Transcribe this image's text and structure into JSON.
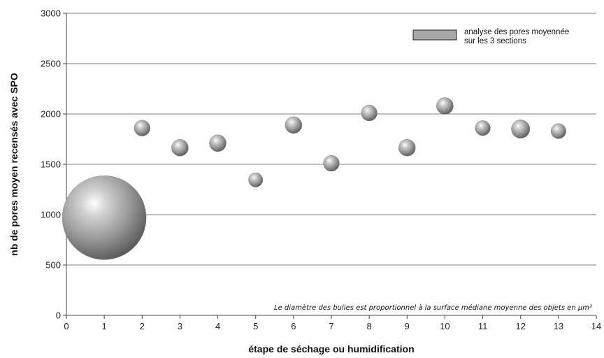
{
  "chart_data": {
    "type": "scatter",
    "subtype": "bubble",
    "xlabel": "étape de séchage ou humidification",
    "ylabel": "nb de pores moyen recensés avec SPO",
    "xlim": [
      0,
      14
    ],
    "ylim": [
      0,
      3000
    ],
    "x_ticks": [
      "0",
      "1",
      "2",
      "3",
      "4",
      "5",
      "6",
      "7",
      "8",
      "9",
      "10",
      "11",
      "12",
      "13",
      "14"
    ],
    "y_ticks": [
      "0",
      "500",
      "1000",
      "1500",
      "2000",
      "2500",
      "3000"
    ],
    "grid": "horizontal",
    "legend_position": "top-right",
    "series": [
      {
        "name": "analyse des pores moyennée sur les 3 sections",
        "legend_lines": [
          "analyse des pores moyennée",
          "sur les 3 sections"
        ],
        "color": "#9e9e9e",
        "x": [
          1,
          2,
          3,
          4,
          5,
          6,
          7,
          8,
          9,
          10,
          11,
          12,
          13
        ],
        "y": [
          970,
          1860,
          1665,
          1710,
          1345,
          1890,
          1510,
          2010,
          1665,
          2080,
          1860,
          1850,
          1830
        ],
        "size": [
          100,
          19,
          20,
          20,
          17,
          20,
          19,
          19,
          20,
          20,
          18,
          22,
          18
        ]
      }
    ],
    "annotation": "Le diamètre des bulles est proportionnel à la surface médiane moyenne des objets en µm²"
  }
}
